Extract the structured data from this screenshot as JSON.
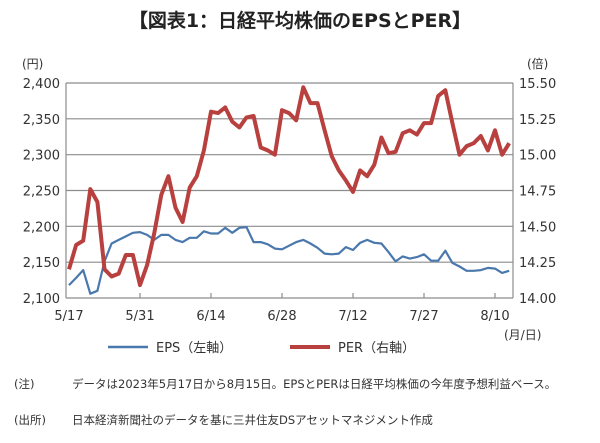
{
  "chart_data": {
    "type": "line",
    "title": "【図表1：日経平均株価のEPSとPER】",
    "left_unit": "(円)",
    "right_unit": "(倍)",
    "x_unit": "(月/日)",
    "x_tick_labels": [
      "5/17",
      "5/31",
      "6/14",
      "6/28",
      "7/12",
      "7/27",
      "8/10"
    ],
    "x_tick_indices": [
      0,
      10,
      20,
      30,
      40,
      50,
      60
    ],
    "y_left": {
      "min": 2100,
      "max": 2400,
      "ticks": [
        "2,100",
        "2,150",
        "2,200",
        "2,250",
        "2,300",
        "2,350",
        "2,400"
      ]
    },
    "y_right": {
      "min": 14.0,
      "max": 15.5,
      "ticks": [
        "14.00",
        "14.25",
        "14.50",
        "14.75",
        "15.00",
        "15.25",
        "15.50"
      ]
    },
    "grid": true,
    "legend_position": "bottom",
    "series": [
      {
        "name": "EPS（左軸）",
        "axis": "left",
        "color": "#4a78ad",
        "values": [
          2118,
          2128,
          2139,
          2106,
          2110,
          2151,
          2176,
          2181,
          2186,
          2191,
          2192,
          2188,
          2181,
          2188,
          2188,
          2181,
          2178,
          2184,
          2184,
          2193,
          2190,
          2190,
          2198,
          2191,
          2198,
          2199,
          2178,
          2178,
          2175,
          2169,
          2168,
          2173,
          2178,
          2181,
          2176,
          2170,
          2162,
          2161,
          2162,
          2171,
          2167,
          2177,
          2181,
          2177,
          2176,
          2164,
          2151,
          2158,
          2155,
          2157,
          2161,
          2152,
          2152,
          2166,
          2149,
          2144,
          2138,
          2138,
          2139,
          2142,
          2141,
          2135,
          2138
        ]
      },
      {
        "name": "PER（右軸）",
        "axis": "right",
        "color": "#b8403e",
        "values": [
          14.2,
          14.37,
          14.4,
          14.76,
          14.67,
          14.2,
          14.15,
          14.17,
          14.3,
          14.3,
          14.09,
          14.23,
          14.45,
          14.72,
          14.85,
          14.63,
          14.53,
          14.77,
          14.85,
          15.03,
          15.3,
          15.29,
          15.33,
          15.23,
          15.19,
          15.26,
          15.27,
          15.05,
          15.03,
          15.0,
          15.31,
          15.29,
          15.24,
          15.47,
          15.36,
          15.36,
          15.17,
          14.99,
          14.89,
          14.82,
          14.74,
          14.89,
          14.85,
          14.93,
          15.12,
          15.01,
          15.02,
          15.15,
          15.17,
          15.14,
          15.22,
          15.22,
          15.41,
          15.45,
          15.22,
          15.0,
          15.06,
          15.08,
          15.13,
          15.03,
          15.17,
          15.0,
          15.08
        ]
      }
    ]
  },
  "notes": [
    {
      "head": "(注)",
      "body": "データは2023年5月17日から8月15日。EPSとPERは日経平均株価の今年度予想利益ベース。"
    },
    {
      "head": "(出所)",
      "body": "日本経済新聞社のデータを基に三井住友DSアセットマネジメント作成"
    }
  ]
}
